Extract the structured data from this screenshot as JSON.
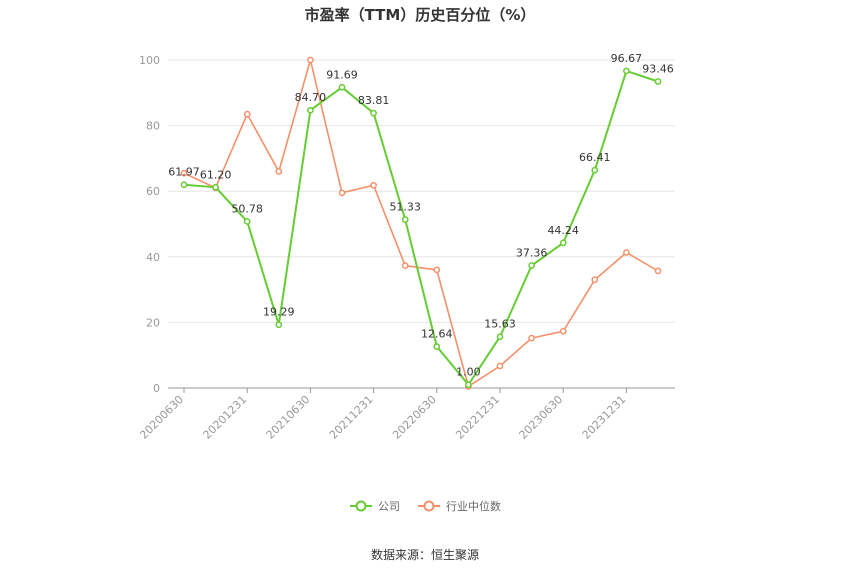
{
  "chart_data": {
    "type": "line",
    "title": "市盈率（TTM）历史百分位（%）",
    "x": [
      "20200630",
      "20200930",
      "20201231",
      "20210331",
      "20210630",
      "20210930",
      "20211231",
      "20220331",
      "20220630",
      "20220930",
      "20221231",
      "20230331",
      "20230630",
      "20230930",
      "20231231",
      "20240331"
    ],
    "x_tick_labels": [
      "20200630",
      "20201231",
      "20210630",
      "20211231",
      "20220630",
      "20221231",
      "20230630",
      "20231231"
    ],
    "ylim": [
      0,
      100
    ],
    "y_ticks": [
      0,
      20,
      40,
      60,
      80,
      100
    ],
    "grid": true,
    "legend_position": "bottom",
    "series": [
      {
        "name": "公司",
        "color": "#66cc33",
        "values": [
          61.97,
          61.2,
          50.78,
          19.29,
          84.7,
          91.69,
          83.81,
          51.33,
          12.64,
          1.0,
          15.63,
          37.36,
          44.24,
          66.41,
          96.67,
          93.46
        ],
        "labels": [
          "61.97",
          "61.20",
          "50.78",
          "19.29",
          "84.70",
          "91.69",
          "83.81",
          "51.33",
          "12.64",
          "1.00",
          "15.63",
          "37.36",
          "44.24",
          "66.41",
          "96.67",
          "93.46"
        ]
      },
      {
        "name": "行业中位数",
        "color": "#f5916a",
        "values": [
          65.5,
          61.0,
          83.5,
          66.0,
          100.0,
          59.5,
          61.8,
          37.3,
          36.0,
          0.5,
          6.7,
          15.2,
          17.3,
          33.0,
          41.3,
          35.7
        ]
      }
    ]
  },
  "source": "数据来源：恒生聚源"
}
